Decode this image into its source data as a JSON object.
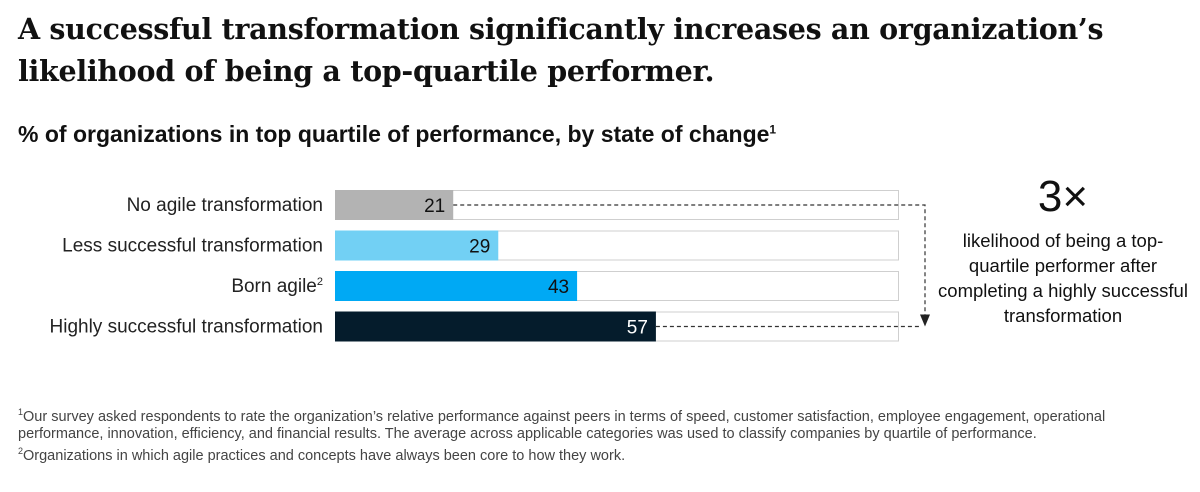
{
  "title": "A successful transformation significantly increases an organization’s likelihood of being a top-quartile performer.",
  "subtitle": "% of organizations in top quartile of performance, by state of change",
  "subtitle_note": "1",
  "callout": {
    "value": "3×",
    "text": "likelihood of being a top-quartile performer after completing a highly successful transformation"
  },
  "footnotes": [
    {
      "marker": "1",
      "text": "Our survey asked respondents to rate the organization’s relative performance against peers in terms of speed, customer satisfaction, employee engagement, operational performance, innovation, efficiency, and financial results. The average across applicable categories was used to classify companies by quartile of performance."
    },
    {
      "marker": "2",
      "text": "Organizations in which agile practices and concepts have always been core to how they work."
    }
  ],
  "chart_data": {
    "type": "bar",
    "orientation": "horizontal",
    "categories": [
      "No agile transformation",
      "Less successful transformation",
      "Born agile",
      "Highly successful transformation"
    ],
    "category_notes": [
      "",
      "",
      "2",
      ""
    ],
    "values": [
      21,
      29,
      43,
      57
    ],
    "xlim": [
      0,
      100
    ],
    "colors": [
      "#b3b3b3",
      "#72d0f4",
      "#00a9f4",
      "#051c2c"
    ],
    "value_label_colors": [
      "#111111",
      "#111111",
      "#111111",
      "#ffffff"
    ],
    "track_color": "#ffffff",
    "track_border": "#cfcfcf",
    "xlabel": "",
    "ylabel": "",
    "grid": false,
    "legend": "none",
    "annotation": {
      "from_category": "No agile transformation",
      "to_category": "Highly successful transformation",
      "style": "dashed bracket arrow"
    }
  }
}
